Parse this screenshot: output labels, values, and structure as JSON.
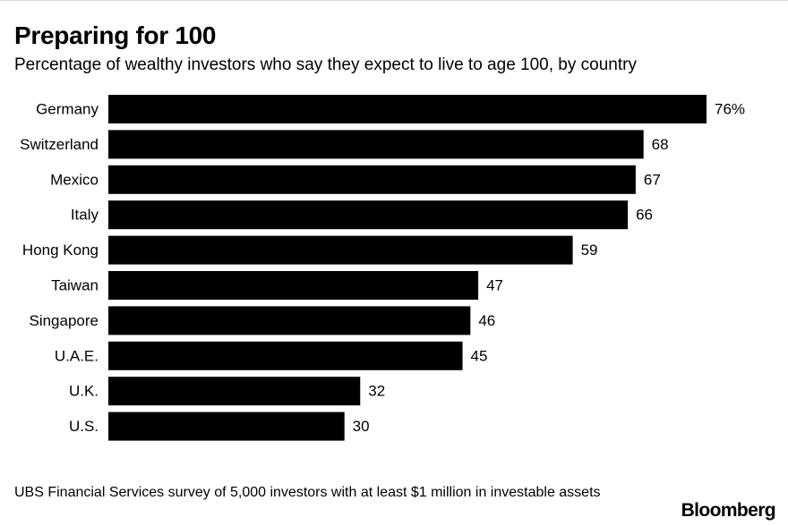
{
  "chart_data": {
    "type": "bar",
    "orientation": "horizontal",
    "title": "Preparing for 100",
    "subtitle": "Percentage of wealthy investors who say they expect to live to age 100, by country",
    "categories": [
      "Germany",
      "Switzerland",
      "Mexico",
      "Italy",
      "Hong Kong",
      "Taiwan",
      "Singapore",
      "U.A.E.",
      "U.K.",
      "U.S."
    ],
    "values": [
      76,
      68,
      67,
      66,
      59,
      47,
      46,
      45,
      32,
      30
    ],
    "value_labels": [
      "76%",
      "68",
      "67",
      "66",
      "59",
      "47",
      "46",
      "45",
      "32",
      "30"
    ],
    "xlabel": "",
    "ylabel": "",
    "xlim": [
      0,
      76
    ],
    "grid": false,
    "bar_color": "#000000"
  },
  "footer": {
    "source": "UBS Financial Services survey of 5,000 investors with at least $1 million in investable assets",
    "brand": "Bloomberg"
  }
}
